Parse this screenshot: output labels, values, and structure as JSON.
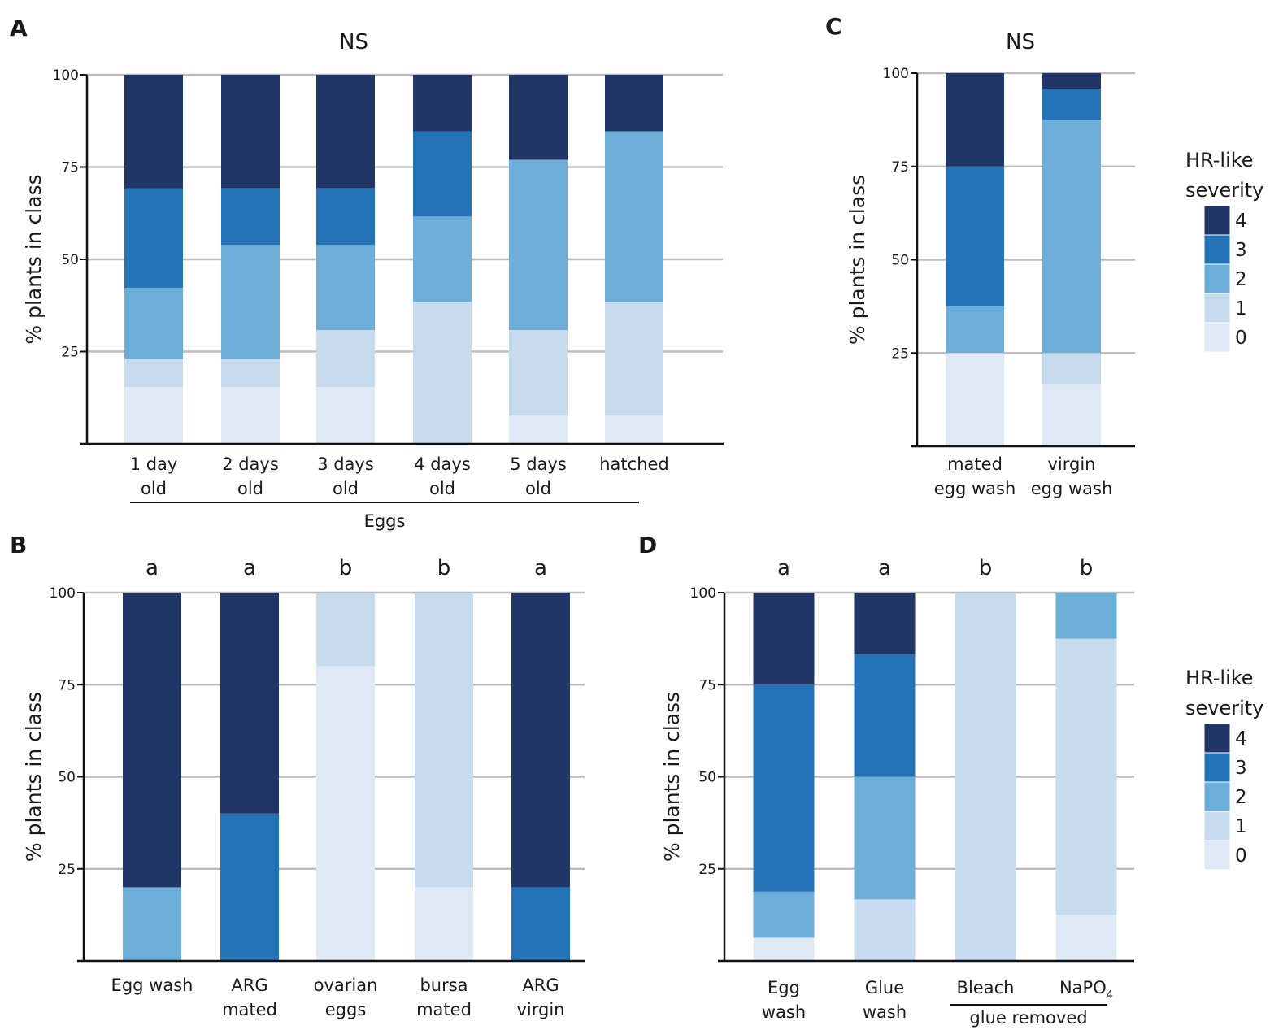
{
  "colors": {
    "4": "#213566",
    "3": "#2473b6",
    "2": "#6daed8",
    "1": "#c6dbee",
    "0": "#dfe8f5",
    "grid": "#bdbdbd",
    "axis": "#111111"
  },
  "legends": [
    {
      "title_lines": [
        "HR-like",
        "severity"
      ],
      "items": [
        {
          "label": "4",
          "key": "4"
        },
        {
          "label": "3",
          "key": "3"
        },
        {
          "label": "2",
          "key": "2"
        },
        {
          "label": "1",
          "key": "1"
        },
        {
          "label": "0",
          "key": "0"
        }
      ]
    },
    {
      "title_lines": [
        "HR-like",
        "severity"
      ],
      "items": [
        {
          "label": "4",
          "key": "4"
        },
        {
          "label": "3",
          "key": "3"
        },
        {
          "label": "2",
          "key": "2"
        },
        {
          "label": "1",
          "key": "1"
        },
        {
          "label": "0",
          "key": "0"
        }
      ]
    }
  ],
  "chart_data": [
    {
      "panel": "A",
      "type": "bar",
      "stacked": true,
      "title": "NS",
      "ylabel": "% plants in class",
      "ylim": [
        0,
        100
      ],
      "yticks": [
        "100",
        "75",
        "50",
        "25"
      ],
      "ytick_values": [
        100,
        75,
        50,
        25
      ],
      "categories": [
        {
          "lines": [
            "1 day",
            "old"
          ]
        },
        {
          "lines": [
            "2 days",
            "old"
          ]
        },
        {
          "lines": [
            "3 days",
            "old"
          ]
        },
        {
          "lines": [
            "4 days",
            "old"
          ]
        },
        {
          "lines": [
            "5 days",
            "old"
          ]
        },
        {
          "lines": [
            "hatched"
          ]
        }
      ],
      "group_label": {
        "text": "Eggs",
        "from": 0,
        "to": 5
      },
      "series": [
        {
          "name": "0",
          "values": [
            15.4,
            15.4,
            15.4,
            0,
            7.7,
            7.7
          ]
        },
        {
          "name": "1",
          "values": [
            7.7,
            7.7,
            15.4,
            38.5,
            23.1,
            30.8
          ]
        },
        {
          "name": "2",
          "values": [
            19.2,
            30.8,
            23.1,
            23.1,
            46.2,
            46.2
          ]
        },
        {
          "name": "3",
          "values": [
            26.9,
            15.4,
            15.4,
            23.1,
            0,
            0
          ]
        },
        {
          "name": "4",
          "values": [
            30.8,
            30.7,
            30.7,
            15.3,
            23.0,
            15.3
          ]
        }
      ],
      "significance": []
    },
    {
      "panel": "B",
      "type": "bar",
      "stacked": true,
      "title": "",
      "ylabel": "% plants in class",
      "ylim": [
        0,
        100
      ],
      "yticks": [
        "100",
        "75",
        "50",
        "25"
      ],
      "ytick_values": [
        100,
        75,
        50,
        25
      ],
      "categories": [
        {
          "lines": [
            "Egg wash"
          ]
        },
        {
          "lines": [
            "ARG",
            "mated"
          ]
        },
        {
          "lines": [
            "ovarian",
            "eggs"
          ]
        },
        {
          "lines": [
            "bursa",
            "mated"
          ]
        },
        {
          "lines": [
            "ARG",
            "virgin"
          ]
        }
      ],
      "series": [
        {
          "name": "0",
          "values": [
            0,
            0,
            80,
            20,
            0
          ]
        },
        {
          "name": "1",
          "values": [
            0,
            0,
            20,
            80,
            0
          ]
        },
        {
          "name": "2",
          "values": [
            20,
            0,
            0,
            0,
            0
          ]
        },
        {
          "name": "3",
          "values": [
            0,
            40,
            0,
            0,
            20
          ]
        },
        {
          "name": "4",
          "values": [
            80,
            60,
            0,
            0,
            80
          ]
        }
      ],
      "significance": [
        "a",
        "a",
        "b",
        "b",
        "a"
      ]
    },
    {
      "panel": "C",
      "type": "bar",
      "stacked": true,
      "title": "NS",
      "ylabel": "% plants in class",
      "ylim": [
        0,
        100
      ],
      "yticks": [
        "100",
        "75",
        "50",
        "25"
      ],
      "ytick_values": [
        100,
        75,
        50,
        25
      ],
      "categories": [
        {
          "lines": [
            "mated",
            "egg wash"
          ]
        },
        {
          "lines": [
            "virgin",
            "egg wash"
          ]
        }
      ],
      "series": [
        {
          "name": "0",
          "values": [
            25,
            16.7
          ]
        },
        {
          "name": "1",
          "values": [
            0,
            8.3
          ]
        },
        {
          "name": "2",
          "values": [
            12.5,
            62.5
          ]
        },
        {
          "name": "3",
          "values": [
            37.5,
            8.3
          ]
        },
        {
          "name": "4",
          "values": [
            25,
            4.2
          ]
        }
      ],
      "significance": []
    },
    {
      "panel": "D",
      "type": "bar",
      "stacked": true,
      "title": "",
      "ylabel": "% plants in class",
      "ylim": [
        0,
        100
      ],
      "yticks": [
        "100",
        "75",
        "50",
        "25"
      ],
      "ytick_values": [
        100,
        75,
        50,
        25
      ],
      "categories": [
        {
          "lines": [
            "Egg",
            "wash"
          ]
        },
        {
          "lines": [
            "Glue",
            "wash"
          ]
        },
        {
          "lines": [
            "Bleach"
          ]
        },
        {
          "lines": [
            "NaPO",
            "4"
          ],
          "subscript": true
        }
      ],
      "group_label": {
        "text": "glue removed",
        "from": 2,
        "to": 3
      },
      "series": [
        {
          "name": "0",
          "values": [
            6.3,
            0,
            0,
            12.5
          ]
        },
        {
          "name": "1",
          "values": [
            0,
            16.7,
            100,
            75
          ]
        },
        {
          "name": "2",
          "values": [
            12.5,
            33.3,
            0,
            12.5
          ]
        },
        {
          "name": "3",
          "values": [
            56.2,
            33.3,
            0,
            0
          ]
        },
        {
          "name": "4",
          "values": [
            25,
            16.7,
            0,
            0
          ]
        }
      ],
      "significance": [
        "a",
        "a",
        "b",
        "b"
      ]
    }
  ]
}
